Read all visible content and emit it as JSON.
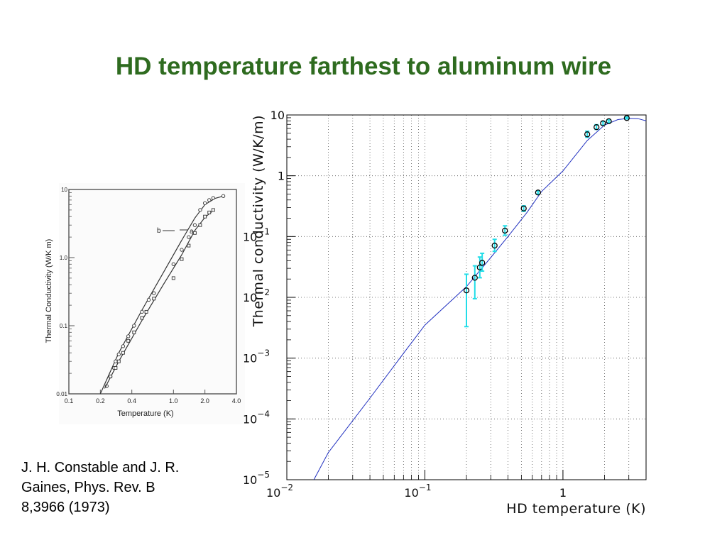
{
  "slide": {
    "title": "HD temperature farthest to aluminum wire",
    "citation_lines": [
      "J. H. Constable and J. R.",
      "Gaines, Phys. Rev. B",
      "8,3966 (1973)"
    ]
  },
  "colors": {
    "title": "#2e6b1f",
    "fit_line": "#2030c0",
    "error_bars": "#22dde8",
    "markers": "#000000"
  },
  "chart_data": [
    {
      "type": "line",
      "title": "",
      "xlabel": "Temperature (K)",
      "ylabel": "Thermal Conductivity (W/K m)",
      "xscale": "log",
      "yscale": "log",
      "xlim": [
        0.1,
        4.0
      ],
      "ylim": [
        0.01,
        10
      ],
      "x_tick_labels": [
        "0.1",
        "0.2",
        "0.4",
        "1.0",
        "2.0",
        "4.0"
      ],
      "x_tick_values": [
        0.1,
        0.2,
        0.4,
        1.0,
        2.0,
        4.0
      ],
      "y_tick_labels": [
        "0.01",
        "0.1",
        "1.0",
        "10"
      ],
      "y_tick_values": [
        0.01,
        0.1,
        1.0,
        10
      ],
      "annotations": [
        "b",
        "a"
      ],
      "grid": false,
      "series": [
        {
          "name": "b",
          "marker": "circle",
          "points": [
            [
              0.23,
              0.013
            ],
            [
              0.25,
              0.018
            ],
            [
              0.27,
              0.024
            ],
            [
              0.28,
              0.03
            ],
            [
              0.3,
              0.038
            ],
            [
              0.33,
              0.05
            ],
            [
              0.37,
              0.07
            ],
            [
              0.42,
              0.1
            ],
            [
              0.5,
              0.16
            ],
            [
              0.58,
              0.24
            ],
            [
              0.65,
              0.3
            ],
            [
              1.0,
              0.8
            ],
            [
              1.2,
              1.3
            ],
            [
              1.4,
              2.0
            ],
            [
              1.6,
              3.0
            ],
            [
              1.8,
              5.0
            ],
            [
              2.0,
              6.3
            ],
            [
              2.2,
              7.0
            ],
            [
              2.4,
              7.5
            ],
            [
              3.0,
              8.0
            ]
          ],
          "curve": [
            [
              0.2,
              0.01
            ],
            [
              0.3,
              0.04
            ],
            [
              0.5,
              0.17
            ],
            [
              0.8,
              0.6
            ],
            [
              1.2,
              1.8
            ],
            [
              1.6,
              3.8
            ],
            [
              2.0,
              6.0
            ],
            [
              2.5,
              7.4
            ],
            [
              3.0,
              8.0
            ]
          ]
        },
        {
          "name": "a",
          "marker": "square",
          "points": [
            [
              0.25,
              0.018
            ],
            [
              0.28,
              0.024
            ],
            [
              0.3,
              0.03
            ],
            [
              0.33,
              0.04
            ],
            [
              0.37,
              0.06
            ],
            [
              0.42,
              0.08
            ],
            [
              0.5,
              0.13
            ],
            [
              0.55,
              0.16
            ],
            [
              0.65,
              0.25
            ],
            [
              1.0,
              0.5
            ],
            [
              1.2,
              0.95
            ],
            [
              1.4,
              1.5
            ],
            [
              1.6,
              2.3
            ],
            [
              1.8,
              3.0
            ],
            [
              2.0,
              4.0
            ],
            [
              2.2,
              4.6
            ],
            [
              2.4,
              5.0
            ]
          ],
          "curve": [
            [
              0.22,
              0.012
            ],
            [
              0.3,
              0.03
            ],
            [
              0.5,
              0.12
            ],
            [
              0.8,
              0.4
            ],
            [
              1.2,
              1.1
            ],
            [
              1.6,
              2.5
            ],
            [
              2.0,
              3.9
            ],
            [
              2.4,
              4.9
            ]
          ]
        }
      ]
    },
    {
      "type": "scatter",
      "title": "",
      "xlabel": "HD temperature (K)",
      "ylabel": "Thermal conductivity (W/K/m)",
      "xscale": "log",
      "yscale": "log",
      "xlim": [
        0.01,
        4.0
      ],
      "ylim": [
        1e-05,
        10
      ],
      "grid": true,
      "x_ticks": [
        {
          "value": 0.01,
          "base": "10",
          "exp": "−2"
        },
        {
          "value": 0.1,
          "base": "10",
          "exp": "−1"
        },
        {
          "value": 1,
          "base": "1",
          "exp": ""
        }
      ],
      "y_ticks": [
        {
          "value": 10,
          "base": "10",
          "exp": ""
        },
        {
          "value": 1,
          "base": "1",
          "exp": ""
        },
        {
          "value": 0.1,
          "base": "10",
          "exp": "−1"
        },
        {
          "value": 0.01,
          "base": "10",
          "exp": "−2"
        },
        {
          "value": 0.001,
          "base": "10",
          "exp": "−3"
        },
        {
          "value": 0.0001,
          "base": "10",
          "exp": "−4"
        },
        {
          "value": 1e-05,
          "base": "10",
          "exp": "−5"
        }
      ],
      "fit_curve": [
        [
          0.0157,
          1e-05
        ],
        [
          0.02,
          2.8e-05
        ],
        [
          0.04,
          0.00022
        ],
        [
          0.07,
          0.0012
        ],
        [
          0.1,
          0.0035
        ],
        [
          0.15,
          0.0082
        ],
        [
          0.2,
          0.015
        ],
        [
          0.3,
          0.045
        ],
        [
          0.4,
          0.1
        ],
        [
          0.55,
          0.25
        ],
        [
          0.7,
          0.55
        ],
        [
          1.0,
          1.2
        ],
        [
          1.5,
          3.8
        ],
        [
          2.0,
          6.8
        ],
        [
          2.5,
          8.4
        ],
        [
          3.0,
          8.8
        ],
        [
          3.5,
          8.7
        ],
        [
          4.0,
          8.0
        ]
      ],
      "data_points": [
        {
          "x": 0.2,
          "y": 0.013,
          "ylo": 0.0033,
          "yhi": 0.024
        },
        {
          "x": 0.23,
          "y": 0.021,
          "ylo": 0.0095,
          "yhi": 0.033
        },
        {
          "x": 0.25,
          "y": 0.031,
          "ylo": 0.021,
          "yhi": 0.046
        },
        {
          "x": 0.26,
          "y": 0.037,
          "ylo": 0.027,
          "yhi": 0.053
        },
        {
          "x": 0.32,
          "y": 0.071,
          "ylo": 0.057,
          "yhi": 0.09
        },
        {
          "x": 0.38,
          "y": 0.125,
          "ylo": 0.105,
          "yhi": 0.15
        },
        {
          "x": 0.52,
          "y": 0.29,
          "ylo": 0.26,
          "yhi": 0.32
        },
        {
          "x": 0.66,
          "y": 0.53,
          "ylo": 0.5,
          "yhi": 0.56
        },
        {
          "x": 1.5,
          "y": 4.8,
          "ylo": 4.3,
          "yhi": 5.4
        },
        {
          "x": 1.75,
          "y": 6.3,
          "ylo": 5.8,
          "yhi": 6.9
        },
        {
          "x": 1.95,
          "y": 7.3,
          "ylo": 6.8,
          "yhi": 7.8
        },
        {
          "x": 2.15,
          "y": 7.9,
          "ylo": 7.5,
          "yhi": 8.3
        },
        {
          "x": 2.9,
          "y": 8.9,
          "ylo": 8.6,
          "yhi": 9.2
        }
      ]
    }
  ]
}
